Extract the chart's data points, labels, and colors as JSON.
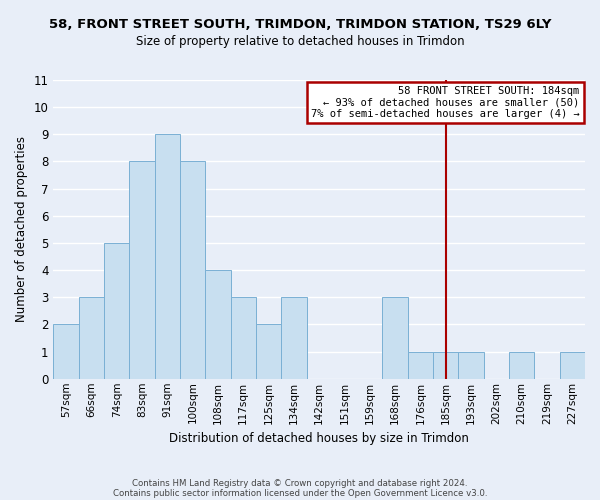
{
  "title": "58, FRONT STREET SOUTH, TRIMDON, TRIMDON STATION, TS29 6LY",
  "subtitle": "Size of property relative to detached houses in Trimdon",
  "xlabel": "Distribution of detached houses by size in Trimdon",
  "ylabel": "Number of detached properties",
  "bar_labels": [
    "57sqm",
    "66sqm",
    "74sqm",
    "83sqm",
    "91sqm",
    "100sqm",
    "108sqm",
    "117sqm",
    "125sqm",
    "134sqm",
    "142sqm",
    "151sqm",
    "159sqm",
    "168sqm",
    "176sqm",
    "185sqm",
    "193sqm",
    "202sqm",
    "210sqm",
    "219sqm",
    "227sqm"
  ],
  "bar_heights": [
    2,
    3,
    5,
    8,
    9,
    8,
    4,
    3,
    2,
    3,
    0,
    0,
    0,
    3,
    1,
    1,
    1,
    0,
    1,
    0,
    1
  ],
  "bar_color": "#c8dff0",
  "bar_edge_color": "#7ab0d4",
  "vline_x_index": 15,
  "vline_color": "#aa0000",
  "ylim": [
    0,
    11
  ],
  "yticks": [
    0,
    1,
    2,
    3,
    4,
    5,
    6,
    7,
    8,
    9,
    10,
    11
  ],
  "annotation_title": "58 FRONT STREET SOUTH: 184sqm",
  "annotation_line1": "← 93% of detached houses are smaller (50)",
  "annotation_line2": "7% of semi-detached houses are larger (4) →",
  "annotation_box_color": "#ffffff",
  "annotation_border_color": "#aa0000",
  "footer1": "Contains HM Land Registry data © Crown copyright and database right 2024.",
  "footer2": "Contains public sector information licensed under the Open Government Licence v3.0.",
  "background_color": "#e8eef8",
  "grid_color": "#ffffff",
  "title_fontsize": 9.5,
  "subtitle_fontsize": 8.5
}
